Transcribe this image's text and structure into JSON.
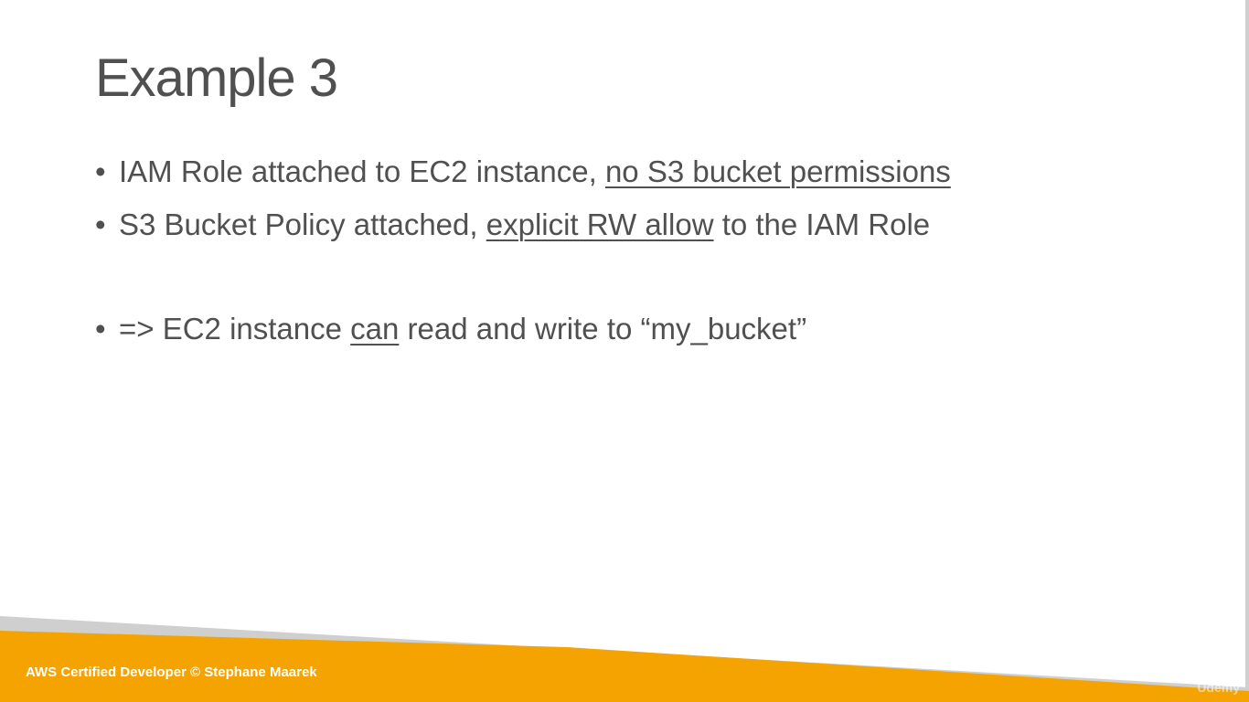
{
  "slide": {
    "title": "Example 3",
    "bullets": [
      {
        "marker": "•",
        "parts": [
          {
            "text": "IAM Role attached to EC2 instance, ",
            "underline": false
          },
          {
            "text": "no S3 bucket permissions",
            "underline": true
          }
        ]
      },
      {
        "marker": "•",
        "parts": [
          {
            "text": "S3 Bucket Policy attached, ",
            "underline": false
          },
          {
            "text": "explicit RW allow",
            "underline": true
          },
          {
            "text": " to the IAM Role",
            "underline": false
          }
        ]
      },
      {
        "marker": "•",
        "parts": [
          {
            "text": "=> EC2 instance ",
            "underline": false
          },
          {
            "text": "can",
            "underline": true
          },
          {
            "text": " read and write to “my_bucket”",
            "underline": false
          }
        ]
      }
    ]
  },
  "footer": {
    "text": "AWS Certified Developer © Stephane Maarek",
    "watermark": "Ûdemy"
  },
  "colors": {
    "text": "#505050",
    "footer_band": "#f4a300",
    "footer_shadow": "#cfcfcf",
    "background": "#ffffff"
  }
}
